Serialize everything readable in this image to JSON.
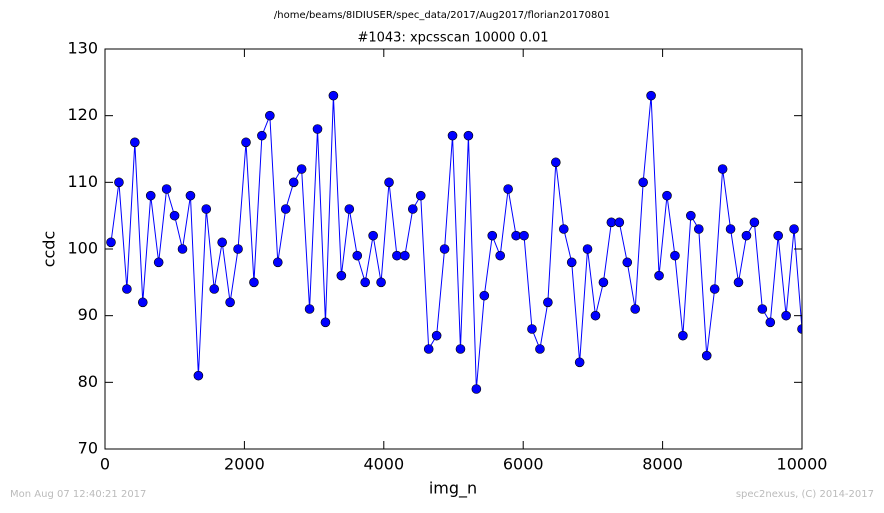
{
  "chart_data": {
    "type": "line",
    "title": "/home/beams/8IDIUSER/spec_data/2017/Aug2017/florian20170801",
    "subtitle": "#1043: xpcsscan 10000 0.01",
    "x_label": "img_n",
    "y_label": "ccdc",
    "footer_left": "Mon Aug 07 12:40:21 2017",
    "footer_right": "spec2nexus, (C) 2014-2017",
    "x": [
      86,
      200,
      314,
      428,
      542,
      656,
      770,
      884,
      998,
      1112,
      1226,
      1340,
      1453,
      1567,
      1681,
      1795,
      1909,
      2023,
      2137,
      2251,
      2365,
      2479,
      2593,
      2707,
      2821,
      2935,
      3049,
      3163,
      3277,
      3391,
      3505,
      3619,
      3733,
      3847,
      3961,
      4075,
      4188,
      4302,
      4416,
      4530,
      4644,
      4758,
      4872,
      4986,
      5100,
      5214,
      5328,
      5442,
      5556,
      5670,
      5784,
      5898,
      6012,
      6126,
      6240,
      6354,
      6468,
      6582,
      6696,
      6810,
      6923,
      7037,
      7151,
      7265,
      7379,
      7493,
      7607,
      7721,
      7835,
      7949,
      8063,
      8177,
      8291,
      8405,
      8519,
      8633,
      8747,
      8861,
      8975,
      9089,
      9203,
      9317,
      9431,
      9545,
      9658,
      9772,
      9886,
      10000
    ],
    "series": [
      {
        "color": "#0000ff",
        "values": [
          101,
          110,
          94,
          116,
          92,
          108,
          98,
          109,
          105,
          100,
          108,
          81,
          106,
          94,
          101,
          92,
          100,
          116,
          95,
          117,
          120,
          98,
          106,
          110,
          112,
          91,
          118,
          89,
          123,
          96,
          106,
          99,
          95,
          102,
          95,
          110,
          99,
          99,
          106,
          108,
          85,
          87,
          100,
          117,
          85,
          117,
          79,
          93,
          102,
          99,
          109,
          102,
          102,
          88,
          85,
          92,
          113,
          103,
          98,
          83,
          100,
          90,
          95,
          104,
          104,
          98,
          91,
          110,
          123,
          96,
          108,
          99,
          87,
          105,
          103,
          84,
          94,
          112,
          103,
          95,
          102,
          104,
          91,
          89,
          102,
          90,
          103,
          88
        ]
      }
    ],
    "xlim": [
      0,
      10000
    ],
    "xticks": [
      0,
      2000,
      4000,
      6000,
      8000,
      10000
    ],
    "ylim": [
      70,
      130
    ],
    "yticks": [
      70,
      80,
      90,
      100,
      110,
      120,
      130
    ],
    "grid": false
  }
}
